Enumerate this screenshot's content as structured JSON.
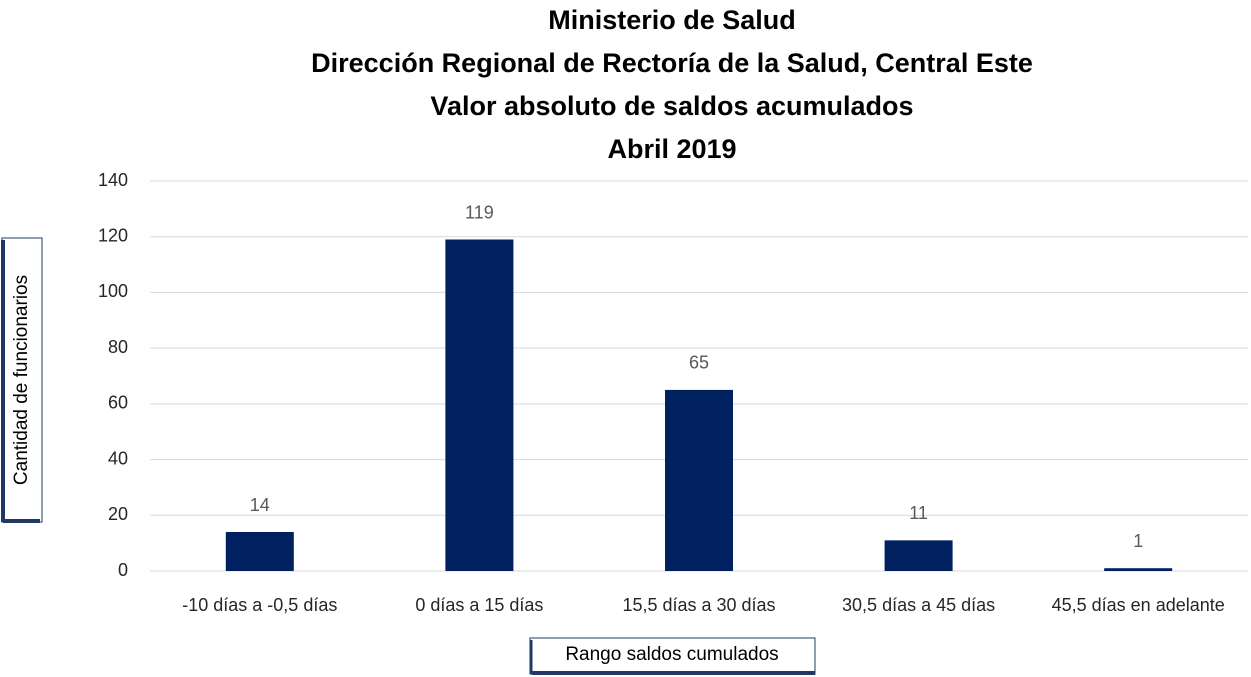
{
  "chart_data": {
    "type": "bar",
    "title": [
      "Ministerio de Salud",
      "Dirección Regional de Rectoría de la Salud, Central Este",
      "Valor absoluto de saldos acumulados",
      "Abril 2019"
    ],
    "x_label": "Rango saldos cumulados",
    "y_label": "Cantidad de funcionarios",
    "categories": [
      "-10 días a -0,5 días",
      "0 días a 15 días",
      "15,5 días a 30 días",
      "30,5 días a 45 días",
      "45,5 días en adelante"
    ],
    "values": [
      14,
      119,
      65,
      11,
      1
    ],
    "color": "#002060",
    "ylim": [
      0,
      140
    ],
    "yticks": [
      0,
      20,
      40,
      60,
      80,
      100,
      120,
      140
    ],
    "grid": true
  }
}
